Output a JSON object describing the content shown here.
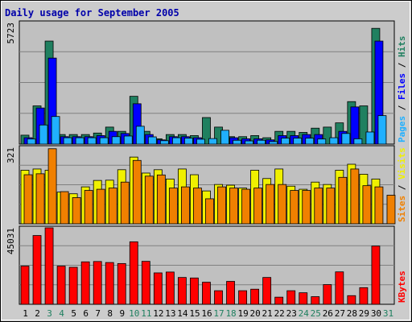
{
  "chart_data": {
    "type": "bar",
    "title": "Daily usage for September 2005",
    "categories": [
      "1",
      "2",
      "3",
      "4",
      "5",
      "6",
      "7",
      "8",
      "9",
      "10",
      "11",
      "12",
      "13",
      "14",
      "15",
      "16",
      "17",
      "18",
      "19",
      "20",
      "21",
      "22",
      "23",
      "24",
      "25",
      "26",
      "27",
      "28",
      "29",
      "30",
      "31"
    ],
    "weekend_days": [
      3,
      4,
      10,
      11,
      17,
      18,
      24,
      25,
      31
    ],
    "panels": [
      {
        "id": "top",
        "max_label": "5723",
        "ymax": 5723,
        "series": [
          {
            "name": "Hits",
            "color": "#208060",
            "values": [
              420,
              1800,
              4850,
              450,
              450,
              450,
              520,
              800,
              600,
              2250,
              600,
              250,
              450,
              450,
              400,
              1250,
              800,
              350,
              350,
              400,
              300,
              600,
              600,
              550,
              750,
              800,
              1000,
              2000,
              1800,
              5450,
              0
            ]
          },
          {
            "name": "Files",
            "color": "#0000ff",
            "values": [
              300,
              1700,
              4050,
              350,
              350,
              350,
              400,
              600,
              500,
              1900,
              450,
              200,
              350,
              350,
              300,
              0,
              0,
              300,
              250,
              250,
              200,
              400,
              400,
              450,
              450,
              0,
              600,
              1750,
              0,
              4850,
              0
            ]
          },
          {
            "name": "Pages",
            "color": "#20b0ff",
            "values": [
              240,
              900,
              1300,
              300,
              300,
              300,
              300,
              350,
              380,
              840,
              340,
              160,
              300,
              280,
              230,
              260,
              650,
              180,
              150,
              180,
              120,
              280,
              280,
              280,
              240,
              300,
              500,
              250,
              570,
              1340,
              0
            ]
          }
        ],
        "legend": [
          "Pages",
          "Files",
          "Hits"
        ]
      },
      {
        "id": "mid",
        "max_label": "321",
        "ymax": 321,
        "series": [
          {
            "name": "Visits",
            "color": "#f0f000",
            "values": [
              225,
              230,
              225,
              133,
              126,
              155,
              182,
              183,
              227,
              280,
              213,
              227,
              188,
              230,
              206,
              138,
              165,
              162,
              150,
              225,
              190,
              230,
              158,
              145,
              175,
              165,
              225,
              250,
              208,
              188,
              0
            ]
          },
          {
            "name": "Sites",
            "color": "#f08000",
            "values": [
              206,
              210,
              315,
              135,
              110,
              140,
              145,
              150,
              175,
              266,
              200,
              205,
              150,
              155,
              150,
              105,
              155,
              150,
              145,
              150,
              165,
              165,
              140,
              140,
              150,
              150,
              195,
              230,
              160,
              155,
              120
            ]
          }
        ],
        "legend": [
          "Sites",
          "Visits"
        ]
      },
      {
        "id": "bottom",
        "max_label": "45031",
        "ymax": 45031,
        "series": [
          {
            "name": "KBytes",
            "color": "#ff0000",
            "values": [
              22500,
              40500,
              47200,
              22500,
              21800,
              25000,
              25200,
              24600,
              24000,
              36800,
              25300,
              18500,
              19000,
              15800,
              15500,
              13000,
              8000,
              13500,
              8000,
              8900,
              15800,
              4200,
              8000,
              6800,
              4500,
              11600,
              19100,
              5100,
              9800,
              34300,
              0
            ]
          }
        ],
        "legend": [
          "KBytes"
        ]
      }
    ]
  }
}
